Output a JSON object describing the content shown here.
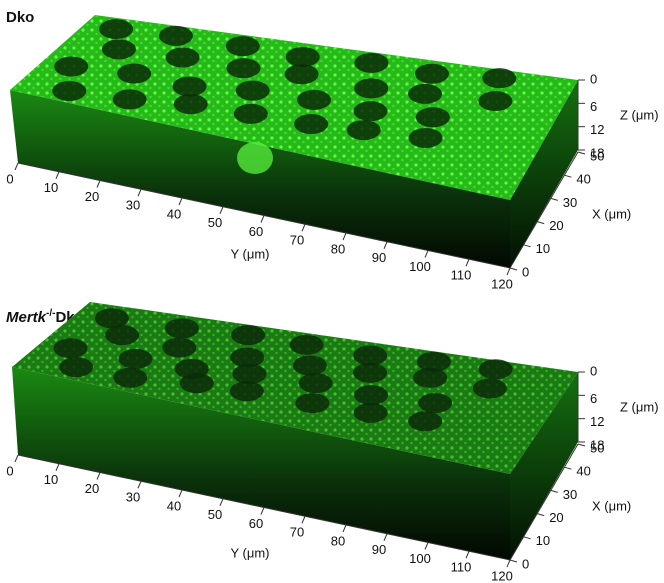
{
  "panels": [
    {
      "title": [
        {
          "text": "Dko"
        }
      ],
      "y_axis": {
        "label": "Y (μm)",
        "ticks": [
          "0",
          "10",
          "20",
          "30",
          "40",
          "50",
          "60",
          "70",
          "80",
          "90",
          "100",
          "110",
          "120"
        ]
      },
      "x_axis": {
        "label": "X (μm)",
        "ticks": [
          "0",
          "10",
          "20",
          "30",
          "40",
          "50"
        ]
      },
      "z_axis": {
        "label": "Z (μm)",
        "ticks": [
          "0",
          "6",
          "12",
          "18"
        ]
      }
    },
    {
      "title": [
        {
          "text": "Mertk",
          "italic": true
        },
        {
          "text": "-/-",
          "superscript": true
        },
        {
          "text": "Dko"
        }
      ],
      "y_axis": {
        "label": "Y (μm)",
        "ticks": [
          "0",
          "10",
          "20",
          "30",
          "40",
          "50",
          "60",
          "70",
          "80",
          "90",
          "100",
          "110",
          "120"
        ]
      },
      "x_axis": {
        "label": "X (μm)",
        "ticks": [
          "0",
          "10",
          "20",
          "30",
          "40",
          "50"
        ]
      },
      "z_axis": {
        "label": "Z (μm)",
        "ticks": [
          "0",
          "6",
          "12",
          "18"
        ]
      }
    }
  ]
}
